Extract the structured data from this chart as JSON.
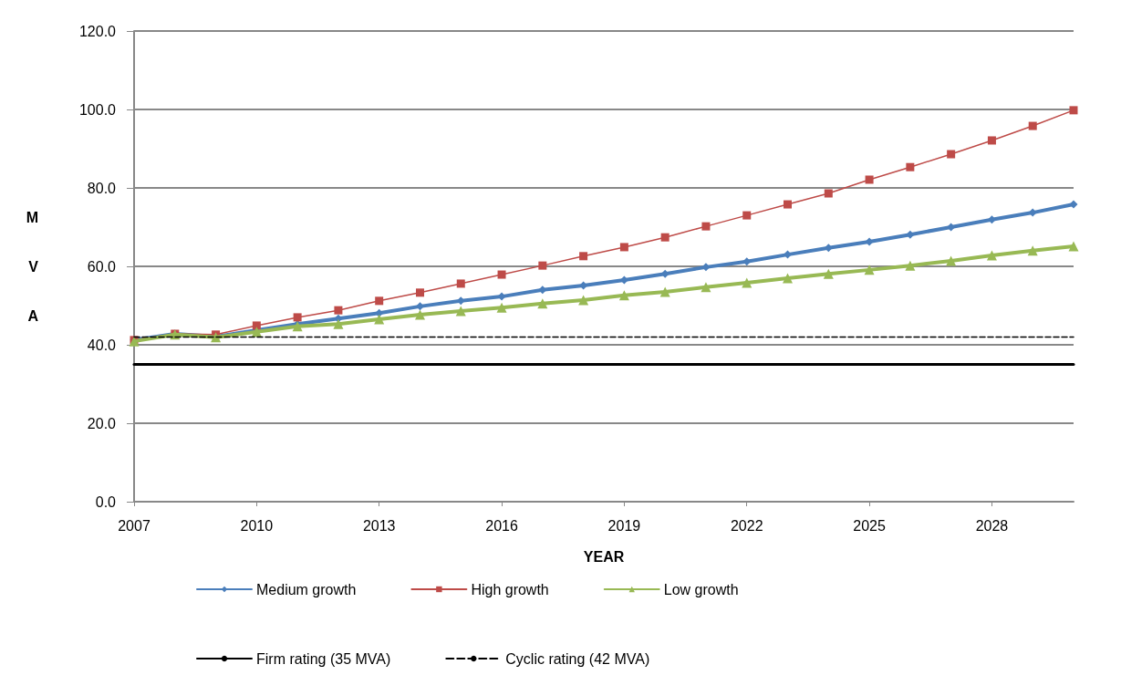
{
  "chart_data": {
    "type": "line",
    "xlabel": "YEAR",
    "ylabel": "MVA",
    "x": [
      2007,
      2008,
      2009,
      2010,
      2011,
      2012,
      2013,
      2014,
      2015,
      2016,
      2017,
      2018,
      2019,
      2020,
      2021,
      2022,
      2023,
      2024,
      2025,
      2026,
      2027,
      2028,
      2029,
      2030
    ],
    "xlim": [
      2007,
      2030
    ],
    "xticks": [
      2007,
      2010,
      2013,
      2016,
      2019,
      2022,
      2025,
      2028
    ],
    "ylim": [
      0,
      120
    ],
    "yticks": [
      {
        "value": 0,
        "label": "0.0"
      },
      {
        "value": 20,
        "label": "20.0"
      },
      {
        "value": 40,
        "label": "40.0"
      },
      {
        "value": 60,
        "label": "60.0"
      },
      {
        "value": 80,
        "label": "80.0"
      },
      {
        "value": 100,
        "label": "100.0"
      },
      {
        "value": 120,
        "label": "120.0"
      }
    ],
    "grid": "y",
    "legend": "bottom",
    "series": [
      {
        "name": "Medium growth",
        "color": "#4a7ebb",
        "marker": "diamond",
        "values": [
          41.2,
          42.8,
          42.1,
          43.7,
          45.3,
          46.7,
          48.1,
          49.8,
          51.2,
          52.3,
          54.0,
          55.1,
          56.5,
          58.1,
          59.8,
          61.2,
          63.0,
          64.7,
          66.3,
          68.1,
          70.0,
          71.9,
          73.7,
          75.8
        ]
      },
      {
        "name": "High growth",
        "color": "#be4b48",
        "marker": "square",
        "values": [
          41.2,
          42.8,
          42.6,
          44.9,
          47.0,
          48.8,
          51.2,
          53.3,
          55.6,
          57.9,
          60.2,
          62.6,
          64.9,
          67.4,
          70.2,
          73.0,
          75.8,
          78.6,
          82.1,
          85.3,
          88.6,
          92.1,
          95.8,
          99.8
        ]
      },
      {
        "name": "Low growth",
        "color": "#98b954",
        "marker": "triangle",
        "values": [
          40.9,
          42.6,
          41.9,
          43.3,
          44.7,
          45.3,
          46.5,
          47.7,
          48.6,
          49.5,
          50.5,
          51.4,
          52.6,
          53.5,
          54.7,
          55.8,
          57.0,
          58.1,
          59.1,
          60.2,
          61.4,
          62.8,
          64.0,
          65.1
        ]
      },
      {
        "name": "Firm rating (35 MVA)",
        "color": "#000000",
        "marker": "none",
        "line_style": "solid",
        "values": [
          35,
          35,
          35,
          35,
          35,
          35,
          35,
          35,
          35,
          35,
          35,
          35,
          35,
          35,
          35,
          35,
          35,
          35,
          35,
          35,
          35,
          35,
          35,
          35
        ]
      },
      {
        "name": "Cyclic rating (42 MVA)",
        "color": "#000000",
        "marker": "none",
        "line_style": "dashed",
        "values": [
          42,
          42,
          42,
          42,
          42,
          42,
          42,
          42,
          42,
          42,
          42,
          42,
          42,
          42,
          42,
          42,
          42,
          42,
          42,
          42,
          42,
          42,
          42,
          42
        ]
      }
    ]
  }
}
